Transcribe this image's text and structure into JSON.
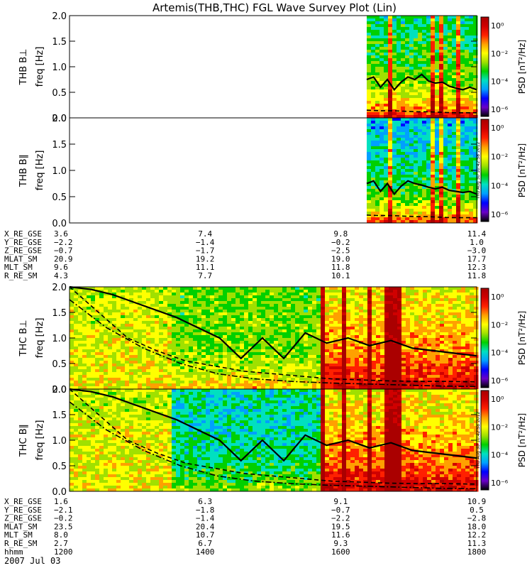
{
  "title": "Artemis(THB,THC) FGL Wave Survey Plot (Lin)",
  "colorbar": {
    "label": "PSD [nT²/Hz]",
    "tick_labels": [
      "10⁰",
      "10⁻²",
      "10⁻⁴",
      "10⁻⁶"
    ],
    "colors": [
      "#000000",
      "#6a00c8",
      "#0000ff",
      "#00a0ff",
      "#00e0c0",
      "#00d000",
      "#a0e000",
      "#ffff00",
      "#ffa000",
      "#ff2000",
      "#d00000",
      "#aa0000"
    ]
  },
  "timestamp": "Thu Aug 30 10:42:58 2012",
  "chart_data": [
    {
      "type": "heatmap",
      "name": "THB B⊥",
      "ylabel": "THB B⊥\nfreq [Hz]",
      "ylim": [
        0,
        2.0
      ],
      "yticks": [
        "0.0",
        "0.5",
        "1.0",
        "1.5",
        "2.0"
      ],
      "data_start_frac": 0.73,
      "solid_line": [
        0.75,
        0.8,
        0.6,
        0.75,
        0.55,
        0.7,
        0.8,
        0.75,
        0.85,
        0.72,
        0.68,
        0.7,
        0.62,
        0.58,
        0.55,
        0.6,
        0.55
      ],
      "dashed_line": [
        0.15,
        0.14,
        0.14,
        0.13,
        0.12,
        0.12,
        0.11,
        0.1,
        0.1,
        0.1
      ],
      "vertical_streak_fracs": [
        0.78,
        0.89,
        0.91,
        0.95
      ]
    },
    {
      "type": "heatmap",
      "name": "THB B∥",
      "ylabel": "THB B∥\nfreq [Hz]",
      "ylim": [
        0,
        2.0
      ],
      "yticks": [
        "0.0",
        "0.5",
        "1.0",
        "1.5",
        "2.0"
      ],
      "data_start_frac": 0.73,
      "solid_line": [
        0.75,
        0.8,
        0.6,
        0.75,
        0.55,
        0.7,
        0.8,
        0.75,
        0.72,
        0.68,
        0.65,
        0.68,
        0.62,
        0.6,
        0.58,
        0.6,
        0.55
      ],
      "dashed_line": [
        0.15,
        0.14,
        0.14,
        0.13,
        0.12,
        0.12,
        0.11,
        0.1,
        0.1,
        0.1
      ],
      "vertical_streak_fracs": [
        0.78,
        0.89,
        0.91,
        0.95
      ]
    },
    {
      "type": "heatmap",
      "name": "THC B⊥",
      "ylabel": "THC B⊥\nfreq [Hz]",
      "ylim": [
        0,
        2.0
      ],
      "yticks": [
        "0.0",
        "0.5",
        "1.0",
        "1.5",
        "2.0"
      ],
      "region_change_fracs": [
        0.25,
        0.61,
        0.65
      ],
      "solid_line": [
        2.0,
        1.95,
        1.85,
        1.7,
        1.55,
        1.4,
        1.2,
        1.0,
        0.6,
        1.0,
        0.6,
        1.1,
        0.9,
        1.0,
        0.85,
        0.95,
        0.8,
        0.75,
        0.7,
        0.65
      ],
      "dashed_line": [
        2.0,
        1.5,
        1.0,
        0.75,
        0.55,
        0.45,
        0.35,
        0.3,
        0.25,
        0.2,
        0.18,
        0.16,
        0.15,
        0.15,
        0.14
      ],
      "dashdot_line": [
        1.75,
        1.2,
        0.8,
        0.5,
        0.3,
        0.2,
        0.15,
        0.12,
        0.1,
        0.08,
        0.06,
        0.05
      ],
      "vertical_streak_fracs": [
        0.62,
        0.67,
        0.73,
        0.78,
        0.8
      ]
    },
    {
      "type": "heatmap",
      "name": "THC B∥",
      "ylabel": "THC B∥\nfreq [Hz]",
      "ylim": [
        0,
        2.0
      ],
      "yticks": [
        "0.0",
        "0.5",
        "1.0",
        "1.5",
        "2.0"
      ],
      "region_change_fracs": [
        0.25,
        0.61,
        0.65
      ],
      "solid_line": [
        2.0,
        1.95,
        1.85,
        1.7,
        1.55,
        1.4,
        1.2,
        1.0,
        0.6,
        1.0,
        0.6,
        1.1,
        0.9,
        1.0,
        0.85,
        0.95,
        0.8,
        0.75,
        0.7,
        0.65
      ],
      "dashed_line": [
        2.0,
        1.5,
        1.0,
        0.75,
        0.55,
        0.45,
        0.35,
        0.3,
        0.25,
        0.2,
        0.18,
        0.16,
        0.15,
        0.15,
        0.14
      ],
      "dashdot_line": [
        1.75,
        1.2,
        0.8,
        0.5,
        0.3,
        0.2,
        0.15,
        0.12,
        0.1,
        0.08,
        0.06,
        0.05
      ],
      "vertical_streak_fracs": [
        0.62,
        0.67,
        0.73,
        0.78,
        0.8
      ]
    }
  ],
  "ephemeris_thb": {
    "labels": [
      "X_RE_GSE",
      "Y_RE_GSE",
      "Z_RE_GSE",
      "MLAT_SM",
      "MLT_SM",
      "R_RE_SM"
    ],
    "columns": [
      [
        "3.6",
        "−2.2",
        "−0.7",
        "20.9",
        "9.6",
        "4.3"
      ],
      [
        "7.4",
        "−1.4",
        "−1.7",
        "19.2",
        "11.1",
        "7.7"
      ],
      [
        "9.8",
        "−0.2",
        "−2.5",
        "19.0",
        "11.8",
        "10.1"
      ],
      [
        "11.4",
        "1.0",
        "−3.0",
        "17.7",
        "12.3",
        "11.8"
      ]
    ]
  },
  "ephemeris_thc": {
    "labels": [
      "X_RE_GSE",
      "Y_RE_GSE",
      "Z_RE_GSE",
      "MLAT_SM",
      "MLT_SM",
      "R_RE_SM",
      "hhmm"
    ],
    "columns": [
      [
        "1.6",
        "−2.1",
        "−0.2",
        "23.5",
        "8.0",
        "2.7",
        "1200"
      ],
      [
        "6.3",
        "−1.8",
        "−1.4",
        "20.4",
        "10.7",
        "6.7",
        "1400"
      ],
      [
        "9.1",
        "−0.7",
        "−2.2",
        "19.5",
        "11.6",
        "9.3",
        "1600"
      ],
      [
        "10.9",
        "0.5",
        "−2.8",
        "18.0",
        "12.2",
        "11.3",
        "1800"
      ]
    ]
  },
  "date": "2007 Jul 03"
}
